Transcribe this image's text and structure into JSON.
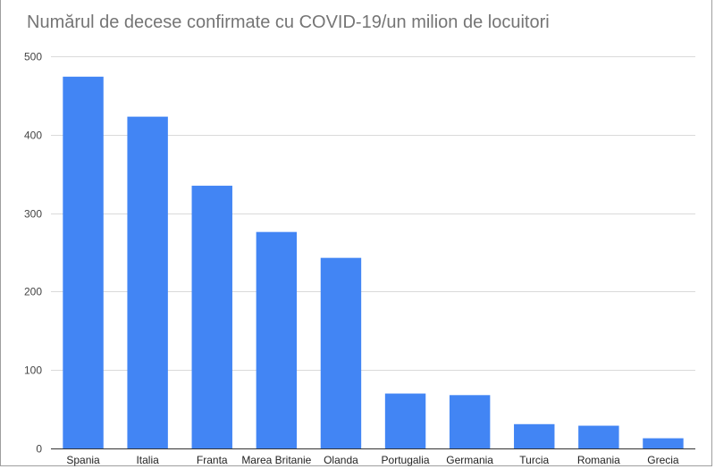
{
  "chart_data": {
    "type": "bar",
    "title": "Numărul de decese confirmate cu COVID-19/un milion de locuitori",
    "xlabel": "",
    "ylabel": "",
    "categories": [
      "Spania",
      "Italia",
      "Franta",
      "Marea Britanie",
      "Olanda",
      "Portugalia",
      "Germania",
      "Turcia",
      "Romania",
      "Grecia"
    ],
    "values": [
      474,
      423,
      335,
      276,
      243,
      70,
      68,
      31,
      29,
      13
    ],
    "ylim": [
      0,
      500
    ],
    "yticks": [
      0,
      100,
      200,
      300,
      400,
      500
    ],
    "grid": true,
    "legend": "none",
    "bar_color": "#4285f4",
    "grid_color": "#dadada",
    "axis_color": "#333333"
  }
}
